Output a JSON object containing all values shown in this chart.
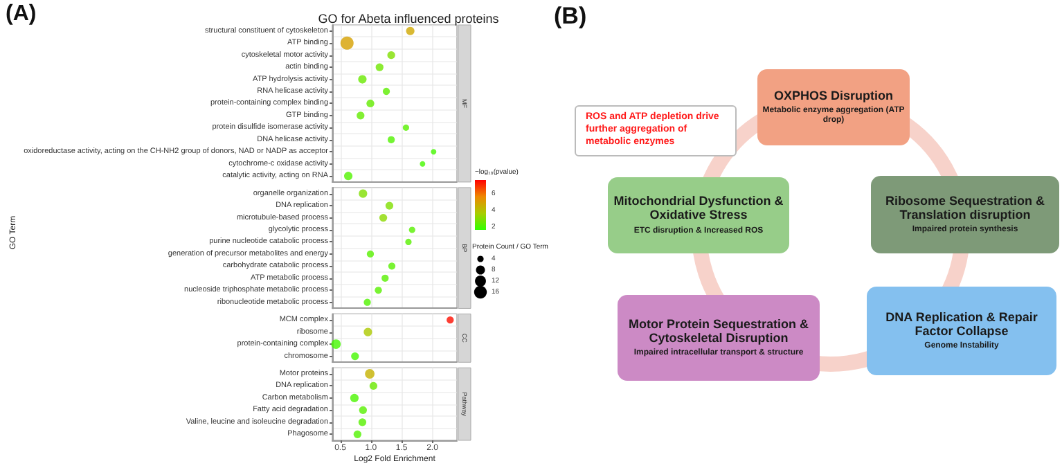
{
  "chart_data": [
    {
      "type": "bubble",
      "title": "GO for Abeta influenced proteins",
      "xlabel": "Log2 Fold Enrichment",
      "ylabel": "GO Term",
      "orientation": "horizontal",
      "grid": true,
      "xlim": [
        0.37,
        2.4
      ],
      "xticks": [
        0.5,
        {
          "value": 1,
          "label": "1.0"
        },
        1.5,
        {
          "value": 2,
          "label": "2.0"
        }
      ],
      "clabel": "−log₁₀(pvalue)",
      "clim": [
        1.7,
        7.7
      ],
      "cticks": [
        2,
        4,
        6
      ],
      "legend_title": "Protein Count / GO Term",
      "size_legend": [
        4,
        8,
        12,
        16
      ],
      "annotations": [
        "(A)",
        "MF",
        "BP",
        "CC",
        "Pathway"
      ],
      "categories": [
        "structural constituent of cytoskeleton",
        "ATP binding",
        "cytoskeletal motor activity",
        "actin binding",
        "ATP hydrolysis activity",
        "RNA helicase activity",
        "protein-containing complex binding",
        "GTP binding",
        "protein disulfide isomerase activity",
        "DNA helicase activity",
        "oxidoreductase activity, acting on the CH-NH2 group of donors, NAD or NADP as acceptor",
        "cytochrome-c oxidase activity",
        "catalytic activity, acting on RNA",
        null,
        "organelle organization",
        "DNA replication",
        "microtubule-based process",
        "glycolytic process",
        "purine nucleotide catabolic process",
        "generation of precursor metabolites and energy",
        "carbohydrate catabolic process",
        "ATP metabolic process",
        "nucleoside triphosphate metabolic process",
        "ribonucleotide metabolic process",
        null,
        "MCM complex",
        "ribosome",
        "protein-containing complex",
        "chromosome",
        null,
        "Motor proteins",
        "DNA replication",
        "Carbon metabolism",
        "Fatty acid degradation",
        "Valine, leucine and isoleucine degradation",
        "Phagosome"
      ],
      "values": [
        1.64,
        0.61,
        1.33,
        1.14,
        0.86,
        1.25,
        0.99,
        0.83,
        1.57,
        1.33,
        2.02,
        1.84,
        0.63,
        null,
        0.87,
        1.3,
        1.2,
        1.67,
        1.61,
        0.99,
        1.34,
        1.23,
        1.12,
        0.94,
        null,
        2.29,
        0.95,
        0.43,
        0.74,
        null,
        0.98,
        1.04,
        0.73,
        0.87,
        0.86,
        0.78
      ],
      "sizes": [
        7,
        17,
        6,
        6,
        7,
        5,
        6,
        6,
        4,
        5,
        3,
        3,
        7,
        null,
        7,
        6,
        6,
        4,
        4,
        5,
        5,
        5,
        5,
        5,
        null,
        5,
        7,
        9,
        6,
        null,
        9,
        6,
        7,
        6,
        6,
        6
      ],
      "cvalues": [
        4.8,
        5.0,
        3.0,
        2.7,
        2.6,
        2.4,
        2.5,
        2.5,
        2.3,
        2.2,
        2.0,
        2.0,
        2.2,
        null,
        3.0,
        3.0,
        3.2,
        2.3,
        2.3,
        2.3,
        2.3,
        2.3,
        2.3,
        2.2,
        null,
        7.5,
        3.8,
        2.0,
        2.0,
        null,
        4.5,
        2.6,
        2.1,
        2.3,
        2.3,
        2.2
      ]
    },
    {
      "type": "other",
      "title": "(B)",
      "categories": [
        "OXPHOS Disruption",
        "Ribosome Sequestration & Translation disruption",
        "DNA Replication & Repair Factor Collapse",
        "Motor Protein Sequestration & Cytoskeletal Disruption",
        "Mitochondrial Dysfunction & Oxidative Stress"
      ],
      "annotations": [
        "Metabolic enzyme aggregation (ATP drop)",
        "Impaired protein synthesis",
        "Genome Instability",
        "Impaired intracellular transport & structure",
        "ETC disruption & Increased ROS",
        "ROS and ATP depletion drive further aggregation of metabolic enzymes"
      ],
      "colors": [
        "#f2a183",
        "#7e9a78",
        "#84c0ef",
        "#cc8ac5",
        "#97cd89"
      ]
    }
  ]
}
